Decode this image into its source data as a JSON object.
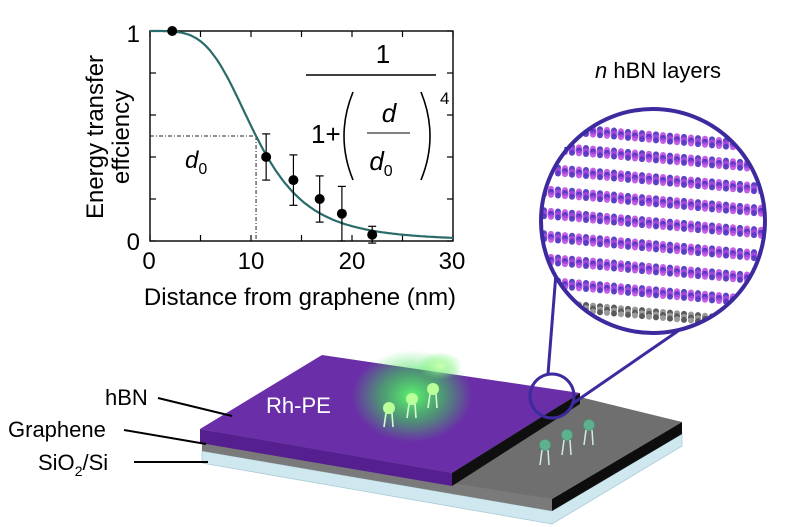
{
  "chart_data": {
    "type": "scatter",
    "xlabel": "Distance from graphene (nm)",
    "ylabel_line1": "Energy transfer",
    "ylabel_line2": "effciency",
    "xlim": [
      0,
      30
    ],
    "ylim": [
      0,
      1
    ],
    "x_ticks": [
      "0",
      "10",
      "20",
      "30"
    ],
    "y_ticks": [
      "0",
      "1"
    ],
    "points": [
      {
        "x": 2.2,
        "y": 1.0,
        "err": 0.0
      },
      {
        "x": 11.5,
        "y": 0.4,
        "err": 0.11
      },
      {
        "x": 14.2,
        "y": 0.29,
        "err": 0.12
      },
      {
        "x": 16.8,
        "y": 0.2,
        "err": 0.11
      },
      {
        "x": 19.0,
        "y": 0.13,
        "err": 0.13
      },
      {
        "x": 22.0,
        "y": 0.03,
        "err": 0.04
      }
    ],
    "fit": {
      "d0": 10.5,
      "exponent": 4
    },
    "d0_guide": {
      "x": 10.5,
      "y": 0.5
    },
    "formula": {
      "numerator": "1",
      "one_plus": "1+",
      "d": "d",
      "d0": "d",
      "sub": "0",
      "power": "4"
    },
    "d0_label": {
      "main": "d",
      "sub": "0"
    },
    "colors": {
      "fit": "#2a6b6b",
      "points": "#000000"
    }
  },
  "diagram": {
    "layer_labels": {
      "hbn": "hBN",
      "graphene": "Graphene",
      "substrate_main": "SiO",
      "substrate_sub": "2",
      "substrate_tail": "/Si"
    },
    "rh_pe_label": "Rh-PE",
    "zoom_title_italic": "n",
    "zoom_title_rest": " hBN layers",
    "colors": {
      "hbn": "#6a2fa8",
      "graphene": "#8c8c8c",
      "substrate": "#cfe8ef",
      "zoom_border": "#3c2a9e",
      "glow": "#3cf05a"
    }
  }
}
